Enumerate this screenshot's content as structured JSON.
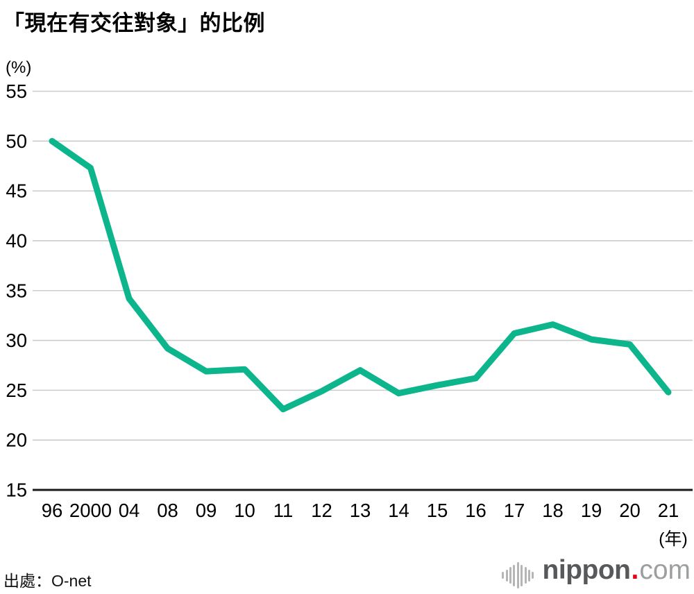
{
  "title": "「現在有交往對象」的比例",
  "y_unit": "(%)",
  "source": "出處：O-net",
  "logo": {
    "icon": "soundwave-bars-icon",
    "brand": "nippon",
    "dot": ".",
    "tld": "com"
  },
  "colors": {
    "line": "#0db58d",
    "grid": "#cccccc",
    "axis": "#1a1a1a",
    "text": "#000000",
    "logo_red": "#e60012",
    "logo_dark": "#57585a",
    "logo_light": "#9d9ea0"
  },
  "chart_data": {
    "type": "line",
    "title": "「現在有交往對象」的比例",
    "xlabel": "(年)",
    "ylabel": "(%)",
    "categories": [
      "96",
      "2000",
      "04",
      "08",
      "09",
      "10",
      "11",
      "12",
      "13",
      "14",
      "15",
      "16",
      "17",
      "18",
      "19",
      "20",
      "21"
    ],
    "values": [
      50.0,
      47.3,
      34.2,
      29.2,
      26.9,
      27.1,
      23.1,
      24.9,
      27.0,
      24.7,
      25.5,
      26.2,
      30.7,
      31.6,
      30.1,
      29.6,
      24.8
    ],
    "ylim": [
      15,
      55
    ],
    "ytick_step": 5,
    "grid": true,
    "legend": false,
    "source": "出處：O-net"
  }
}
